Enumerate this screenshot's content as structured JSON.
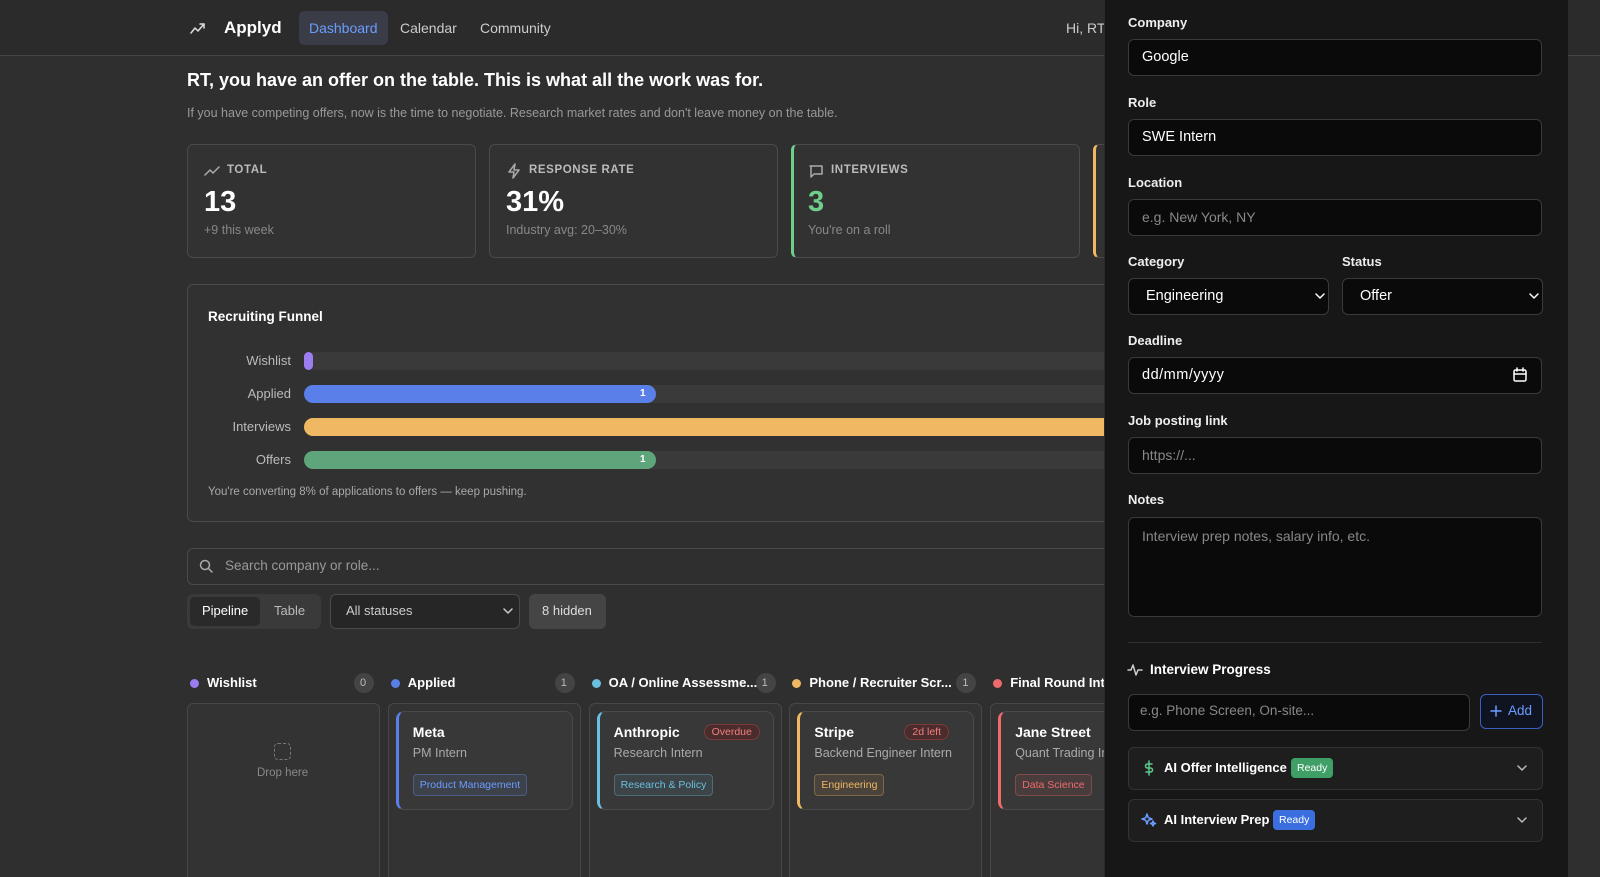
{
  "nav": {
    "logo": "Applyd",
    "links": [
      "Dashboard",
      "Calendar",
      "Community"
    ],
    "greeting": "Hi, RT"
  },
  "hero": {
    "title": "RT, you have an offer on the table. This is what all the work was for.",
    "subtitle": "If you have competing offers, now is the time to negotiate. Research market rates and don't leave money on the table."
  },
  "stats": [
    {
      "label": "TOTAL",
      "value": "13",
      "note": "+9 this week"
    },
    {
      "label": "RESPONSE RATE",
      "value": "31%",
      "note": "Industry avg: 20–30%"
    },
    {
      "label": "INTERVIEWS",
      "value": "3",
      "note": "You're on a roll"
    }
  ],
  "funnel": {
    "title": "Recruiting Funnel",
    "rows": [
      {
        "label": "Wishlist"
      },
      {
        "label": "Applied",
        "count": "1"
      },
      {
        "label": "Interviews"
      },
      {
        "label": "Offers",
        "count": "1"
      }
    ],
    "footer": "You're converting 8% of applications to offers — keep pushing."
  },
  "toolbar": {
    "search": "Search company or role...",
    "views": [
      "Pipeline",
      "Table"
    ],
    "filter": "All statuses",
    "hidden": "8 hidden"
  },
  "columns": [
    {
      "name": "Wishlist",
      "count": "0",
      "empty": "Drop here"
    },
    {
      "name": "Applied",
      "count": "1",
      "cards": [
        {
          "company": "Meta",
          "role": "PM Intern",
          "tag": "Product Management"
        }
      ]
    },
    {
      "name": "OA / Online Assessme...",
      "count": "1",
      "cards": [
        {
          "company": "Anthropic",
          "badge": "Overdue",
          "role": "Research Intern",
          "tag": "Research & Policy"
        }
      ]
    },
    {
      "name": "Phone / Recruiter Scr...",
      "count": "1",
      "cards": [
        {
          "company": "Stripe",
          "badge": "2d left",
          "role": "Backend Engineer Intern",
          "tag": "Engineering"
        }
      ]
    },
    {
      "name": "Final Round Inte",
      "cards": [
        {
          "company": "Jane Street",
          "role": "Quant Trading In",
          "tag": "Data Science"
        }
      ]
    }
  ],
  "panel": {
    "fields": [
      {
        "label": "Company",
        "value": "Google"
      },
      {
        "label": "Role",
        "value": "SWE Intern"
      },
      {
        "label": "Location",
        "placeholder": "e.g. New York, NY"
      }
    ],
    "category": {
      "label": "Category",
      "value": "Engineering"
    },
    "status": {
      "label": "Status",
      "value": "Offer"
    },
    "deadline": {
      "label": "Deadline",
      "value": "dd/mm/yyyy"
    },
    "link": {
      "label": "Job posting link",
      "placeholder": "https://..."
    },
    "notes": {
      "label": "Notes",
      "placeholder": "Interview prep notes, salary info, etc."
    },
    "progress": {
      "title": "Interview Progress",
      "placeholder": "e.g. Phone Screen, On-site...",
      "button": "Add"
    },
    "ai": [
      {
        "title": "AI Offer Intelligence",
        "badge": "Ready"
      },
      {
        "title": "AI Interview Prep",
        "badge": "Ready"
      }
    ]
  }
}
